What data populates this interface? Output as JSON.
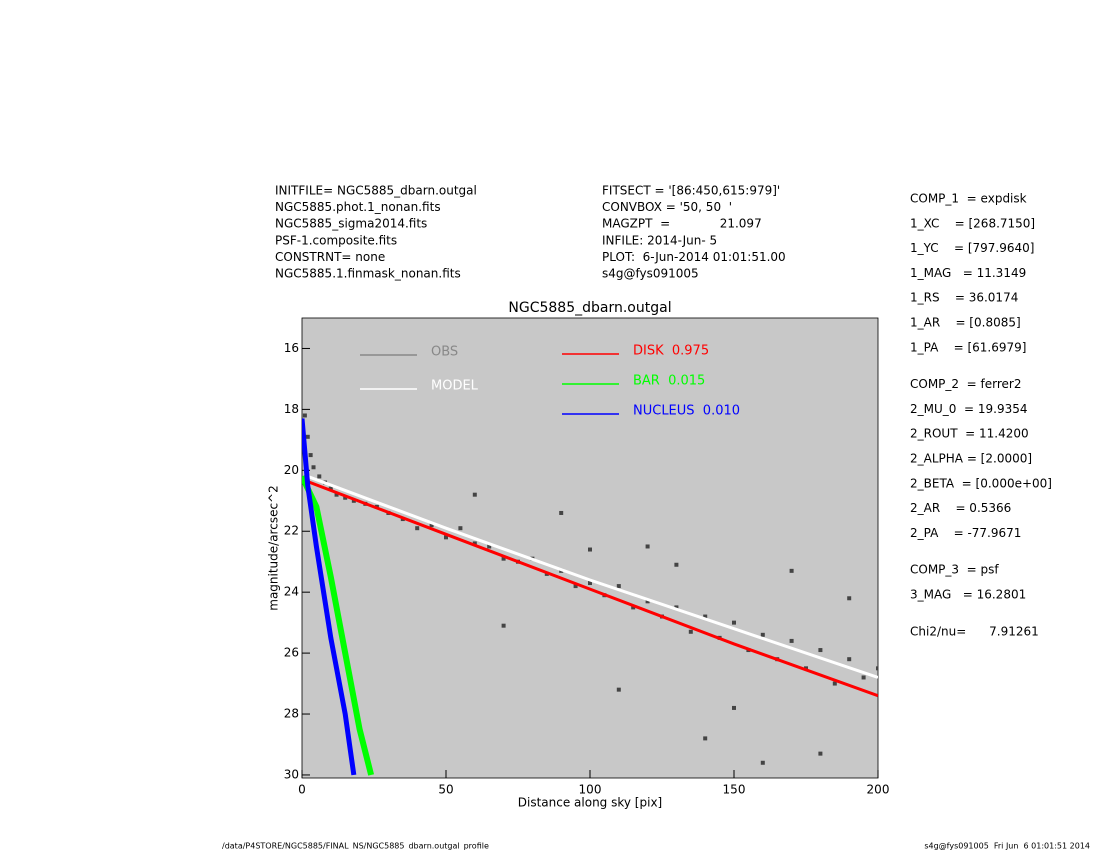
{
  "header": {
    "left": [
      "INITFILE= NGC5885_dbarn.outgal",
      "NGC5885.phot.1_nonan.fits",
      "NGC5885_sigma2014.fits",
      "PSF-1.composite.fits",
      "CONSTRNT= none",
      "NGC5885.1.finmask_nonan.fits"
    ],
    "middle": [
      "FITSECT = '[86:450,615:979]'",
      "CONVBOX = '50, 50  '",
      "MAGZPT  =             21.097",
      "INFILE: 2014-Jun- 5",
      "PLOT:  6-Jun-2014 01:01:51.00",
      "s4g@fys091005"
    ]
  },
  "params": [
    [
      "COMP_1  = expdisk",
      "1_XC    = [268.7150]",
      "1_YC    = [797.9640]",
      "1_MAG   = 11.3149",
      "1_RS    = 36.0174",
      "1_AR    = [0.8085]",
      "1_PA    = [61.6979]"
    ],
    [
      "COMP_2  = ferrer2",
      "2_MU_0  = 19.9354",
      "2_ROUT  = 11.4200",
      "2_ALPHA = [2.0000]",
      "2_BETA  = [0.000e+00]",
      "2_AR    = 0.5366",
      "2_PA    = -77.9671"
    ],
    [
      "COMP_3  = psf",
      "3_MAG   = 16.2801"
    ],
    [
      "Chi2/nu=      7.91261"
    ]
  ],
  "footer": {
    "left": "/data/P4STORE/NGC5885/FINAL_NS/NGC5885_dbarn.outgal_profile",
    "right": "s4g@fys091005  Fri Jun  6 01:01:51 2014"
  },
  "chart_data": {
    "type": "scatter",
    "title": "NGC5885_dbarn.outgal",
    "x_label": "Distance along sky [pix]",
    "y_label": "magnitude/arcsec^2",
    "xlim": [
      0,
      200
    ],
    "ylim": [
      15,
      30.1
    ],
    "y_inverted": true,
    "xticks": [
      0,
      50,
      100,
      150,
      200
    ],
    "yticks": [
      16,
      18,
      20,
      22,
      24,
      26,
      28,
      30
    ],
    "background": "#c8c8c8",
    "series": [
      {
        "name": "OBS",
        "color": "#444444",
        "style": "points",
        "x": [
          1,
          2,
          3,
          4,
          6,
          8,
          10,
          12,
          15,
          18,
          22,
          26,
          30,
          35,
          40,
          45,
          50,
          55,
          60,
          65,
          70,
          75,
          80,
          85,
          90,
          95,
          100,
          105,
          110,
          115,
          120,
          125,
          130,
          135,
          140,
          145,
          150,
          155,
          160,
          165,
          170,
          175,
          180,
          185,
          190,
          195,
          200,
          60,
          90,
          120,
          140,
          160,
          180,
          190,
          70,
          110,
          130,
          170,
          150,
          100
        ],
        "values": [
          18.2,
          18.9,
          19.5,
          19.9,
          20.2,
          20.4,
          20.6,
          20.8,
          20.9,
          21.0,
          21.1,
          21.2,
          21.4,
          21.6,
          21.9,
          21.8,
          22.2,
          21.9,
          22.4,
          22.5,
          22.9,
          23.0,
          22.9,
          23.4,
          23.3,
          23.8,
          23.7,
          24.1,
          23.8,
          24.5,
          24.3,
          24.8,
          24.5,
          25.3,
          24.8,
          25.5,
          25.0,
          25.9,
          25.4,
          26.2,
          25.6,
          26.5,
          25.9,
          27.0,
          26.2,
          26.8,
          26.5,
          20.8,
          21.4,
          22.5,
          28.8,
          29.6,
          29.3,
          24.2,
          25.1,
          27.2,
          23.1,
          23.3,
          27.8,
          22.6
        ]
      },
      {
        "name": "MODEL",
        "color": "#ffffff",
        "style": "line",
        "width": 3,
        "x": [
          2,
          50,
          100,
          150,
          200
        ],
        "values": [
          20.2,
          21.9,
          23.6,
          25.2,
          26.8
        ]
      },
      {
        "name": "DISK  0.975",
        "color": "#ff0000",
        "style": "line",
        "width": 3,
        "x": [
          0,
          50,
          100,
          150,
          200
        ],
        "values": [
          20.3,
          22.1,
          23.9,
          25.7,
          27.4
        ]
      },
      {
        "name": "BAR  0.015",
        "color": "#00ff00",
        "style": "line",
        "width": 6,
        "x": [
          0,
          5,
          10,
          15,
          20,
          24
        ],
        "values": [
          20.2,
          21.2,
          23.5,
          26.0,
          28.5,
          30.0
        ]
      },
      {
        "name": "NUCLEUS  0.010",
        "color": "#0000ff",
        "style": "line",
        "width": 5,
        "x": [
          0,
          2,
          5,
          10,
          15,
          18
        ],
        "values": [
          18.3,
          20.5,
          22.5,
          25.5,
          28.0,
          30.0
        ]
      }
    ]
  }
}
